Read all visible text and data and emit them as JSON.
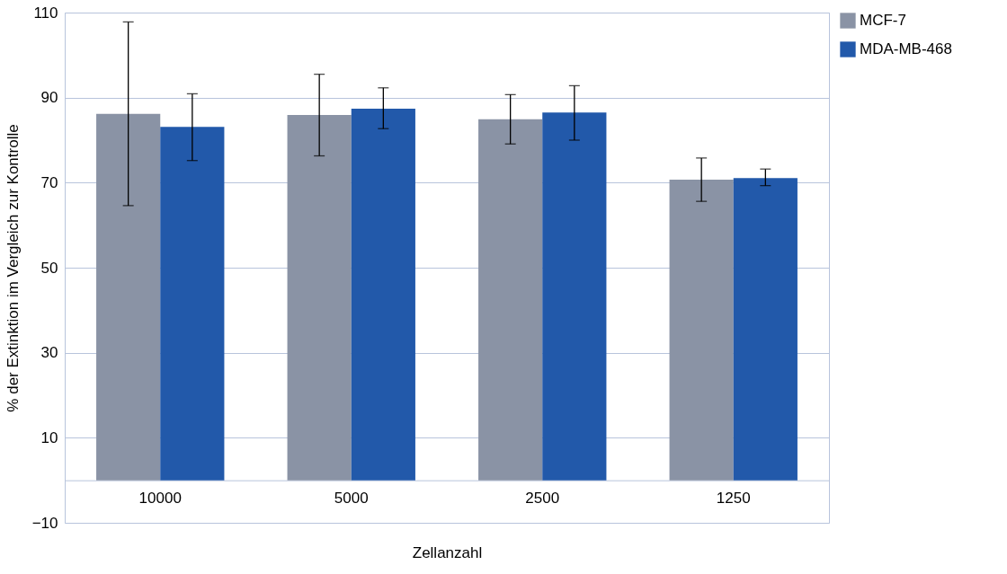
{
  "chart_data": {
    "type": "bar",
    "xlabel": "Zellanzahl",
    "ylabel": "% der Extinktion im Vergleich zur Kontrolle",
    "categories": [
      "10000",
      "5000",
      "2500",
      "1250"
    ],
    "series": [
      {
        "name": "MCF-7",
        "color": "#8a93a5",
        "values": [
          86.2,
          85.9,
          84.9,
          70.7
        ],
        "errors": [
          [
            64.6,
            107.8
          ],
          [
            76.3,
            95.5
          ],
          [
            79.1,
            90.7
          ],
          [
            65.6,
            75.8
          ]
        ]
      },
      {
        "name": "MDA-MB-468",
        "color": "#2259aa",
        "values": [
          83.1,
          87.4,
          86.5,
          71.1
        ],
        "errors": [
          [
            75.2,
            90.9
          ],
          [
            82.7,
            92.3
          ],
          [
            80.0,
            92.8
          ],
          [
            69.3,
            73.2
          ]
        ]
      }
    ],
    "ylim": [
      -10,
      110
    ],
    "yticks": [
      -10,
      10,
      30,
      50,
      70,
      90,
      110
    ],
    "grid": "y",
    "legend": "right"
  }
}
